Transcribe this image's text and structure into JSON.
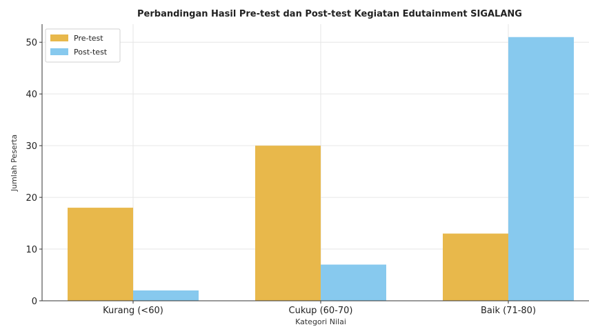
{
  "chart_data": {
    "type": "bar",
    "title": "Perbandingan Hasil Pre-test dan Post-test Kegiatan Edutainment SIGALANG",
    "xlabel": "Kategori Nilai",
    "ylabel": "Jumlah Peserta",
    "categories": [
      "Kurang (<60)",
      "Cukup (60-70)",
      "Baik (71-80)"
    ],
    "series": [
      {
        "name": "Pre-test",
        "values": [
          18,
          30,
          13
        ],
        "color": "#E8B84B"
      },
      {
        "name": "Post-test",
        "values": [
          2,
          7,
          51
        ],
        "color": "#87C9EE"
      }
    ],
    "ylim": [
      0,
      53.5
    ],
    "yticks": [
      0,
      10,
      20,
      30,
      40,
      50
    ],
    "grid": true,
    "legend_position": "top-left"
  }
}
